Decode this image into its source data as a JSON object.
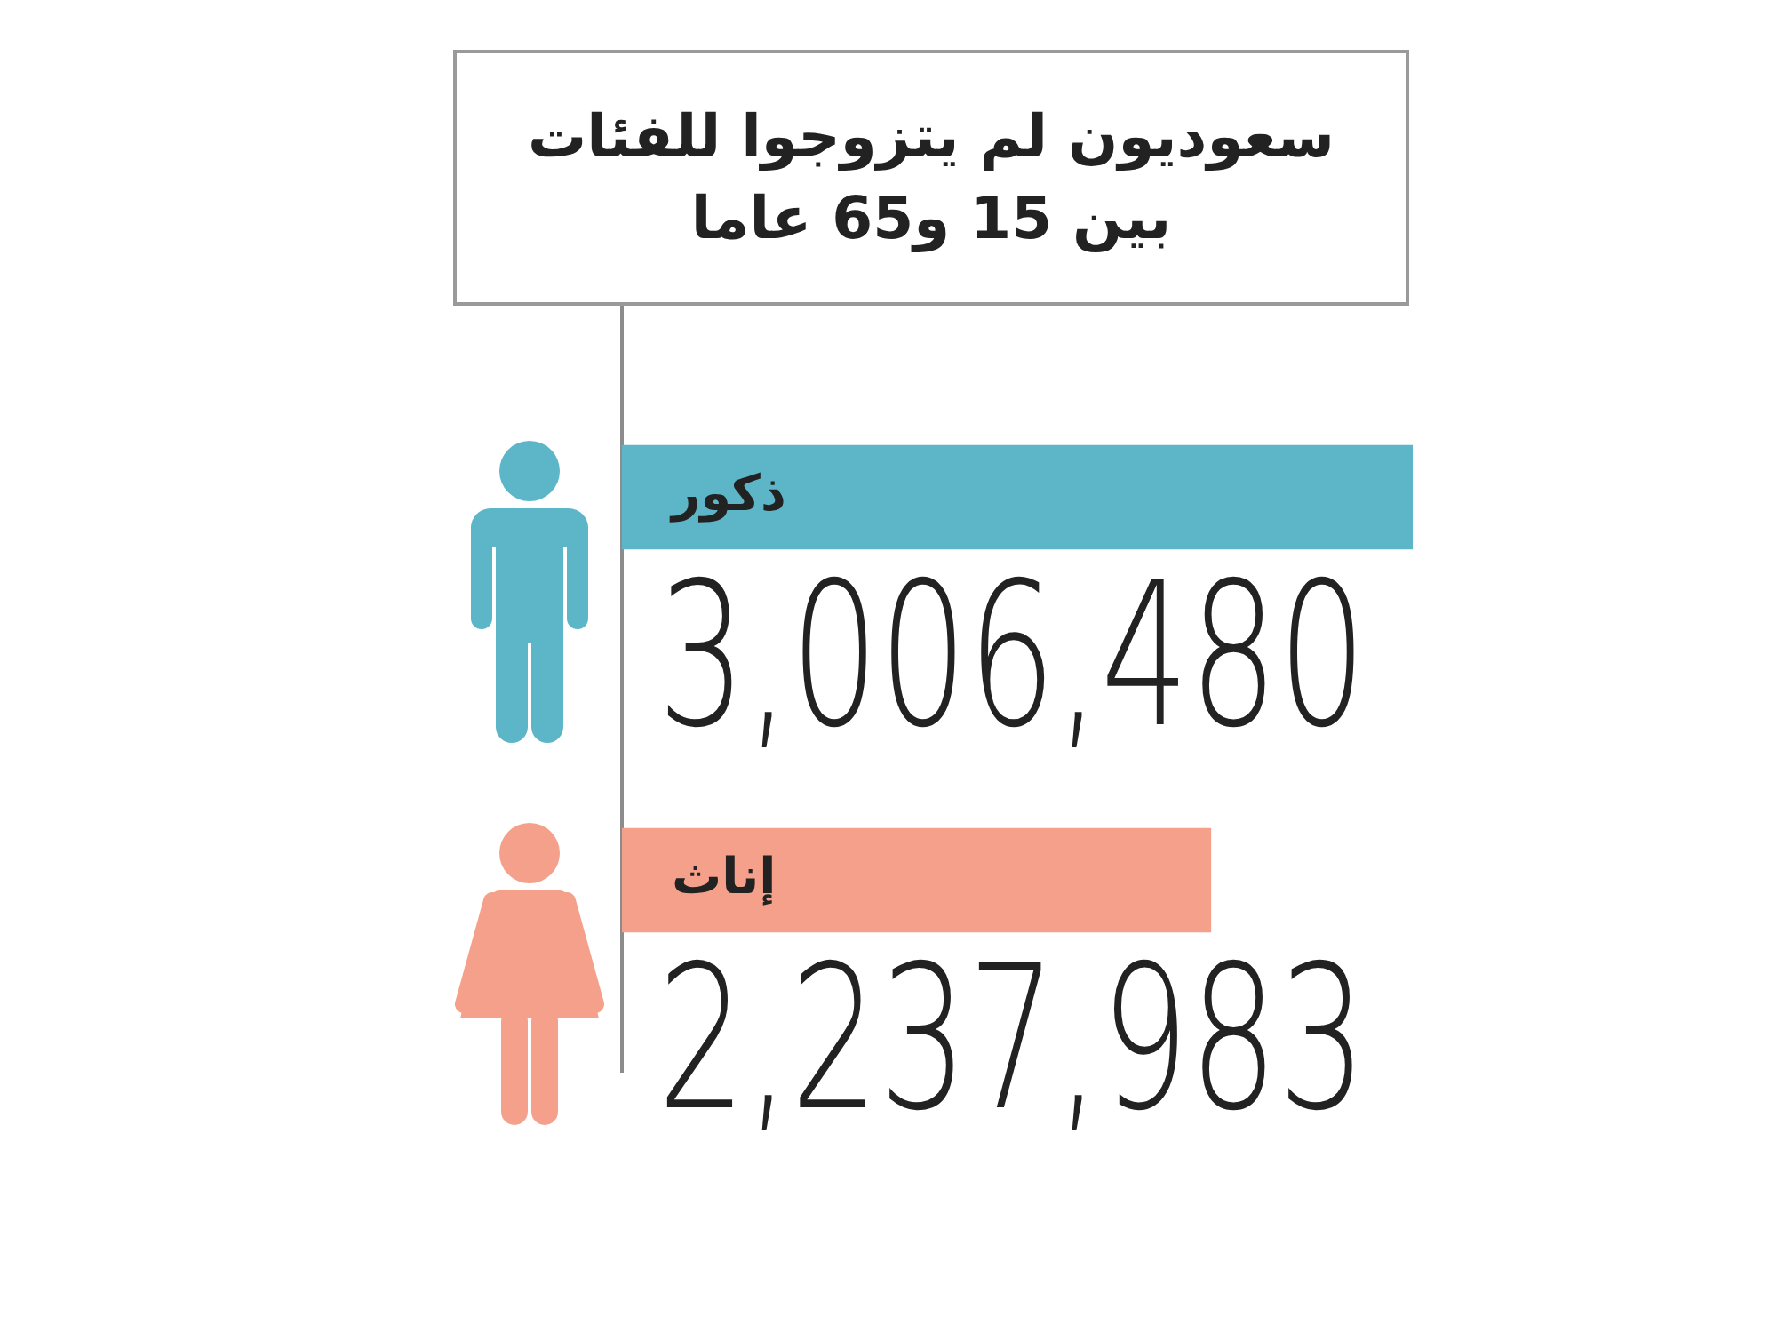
{
  "chart_data": {
    "type": "bar",
    "orientation": "horizontal",
    "title": "سعوديون لم يتزوجوا للفئات\nبين 15 و65 عاما",
    "categories": [
      "ذكور",
      "إناث"
    ],
    "values": [
      3006480,
      2237983
    ],
    "colors": [
      "#5cb6c8",
      "#f5a08a"
    ],
    "value_labels": [
      "3,006,480",
      "2,237,983"
    ]
  }
}
